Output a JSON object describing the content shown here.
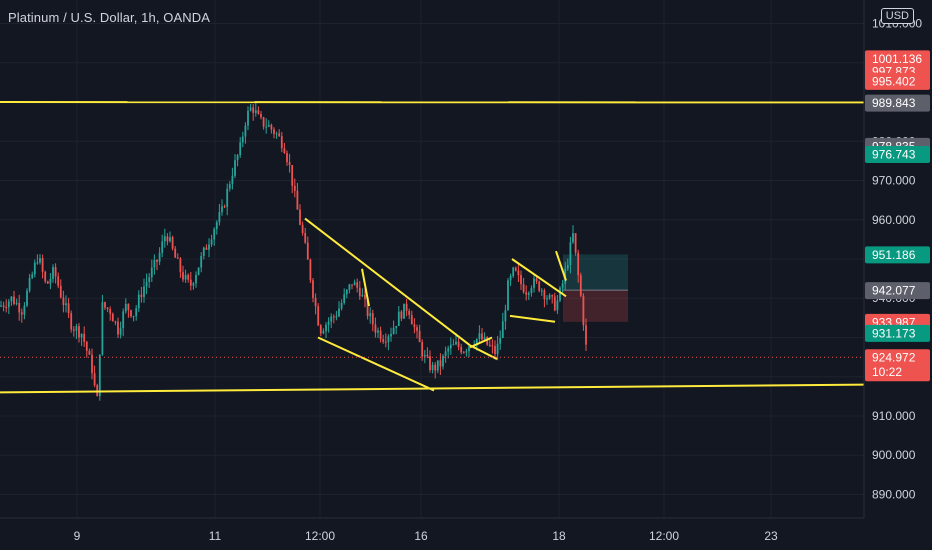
{
  "header": {
    "title": "Platinum / U.S. Dollar, 1h, OANDA",
    "currency": "USD"
  },
  "colors": {
    "background": "#131722",
    "up": "#26a69a",
    "down": "#ef5350",
    "trendline": "#ffeb3b",
    "text": "#d1d4dc",
    "gray_tag": "#5d606b",
    "grid": "#1e222d"
  },
  "chart_data": {
    "type": "candlestick",
    "instrument": "Platinum / U.S. Dollar",
    "interval": "1h",
    "source": "OANDA",
    "ylim": [
      884,
      1016
    ],
    "y_ticks": [
      890,
      900,
      910,
      920,
      930,
      940,
      950,
      960,
      970,
      980,
      990,
      1000,
      1010
    ],
    "y_tick_labels": [
      "890.000",
      "900.000",
      "910.000",
      "920.000",
      "930.000",
      "940.000",
      "950.000",
      "960.000",
      "970.000",
      "980.000",
      "990.000",
      "1000.000",
      "1010.000"
    ],
    "x_ticks": [
      {
        "label": "9",
        "pos": 77
      },
      {
        "label": "11",
        "pos": 215
      },
      {
        "label": "12:00",
        "pos": 320
      },
      {
        "label": "16",
        "pos": 421
      },
      {
        "label": "18",
        "pos": 559
      },
      {
        "label": "12:00",
        "pos": 664
      },
      {
        "label": "23",
        "pos": 771
      }
    ],
    "close_path": [
      [
        0,
        938
      ],
      [
        12,
        940
      ],
      [
        22,
        937
      ],
      [
        30,
        944
      ],
      [
        38,
        951
      ],
      [
        46,
        943
      ],
      [
        54,
        947
      ],
      [
        62,
        940
      ],
      [
        72,
        933
      ],
      [
        82,
        931
      ],
      [
        92,
        922
      ],
      [
        97,
        913
      ],
      [
        102,
        938
      ],
      [
        110,
        937
      ],
      [
        118,
        932
      ],
      [
        126,
        938
      ],
      [
        134,
        936
      ],
      [
        142,
        942
      ],
      [
        150,
        946
      ],
      [
        158,
        950
      ],
      [
        166,
        957
      ],
      [
        174,
        951
      ],
      [
        182,
        946
      ],
      [
        190,
        943
      ],
      [
        198,
        948
      ],
      [
        206,
        953
      ],
      [
        214,
        958
      ],
      [
        222,
        962
      ],
      [
        232,
        972
      ],
      [
        240,
        978
      ],
      [
        246,
        986
      ],
      [
        252,
        989
      ],
      [
        260,
        985
      ],
      [
        268,
        984
      ],
      [
        276,
        982
      ],
      [
        284,
        979
      ],
      [
        290,
        973
      ],
      [
        296,
        964
      ],
      [
        302,
        957
      ],
      [
        308,
        949
      ],
      [
        314,
        940
      ],
      [
        320,
        932
      ],
      [
        328,
        934
      ],
      [
        336,
        936
      ],
      [
        344,
        940
      ],
      [
        352,
        944
      ],
      [
        360,
        942
      ],
      [
        368,
        936
      ],
      [
        376,
        932
      ],
      [
        384,
        930
      ],
      [
        392,
        932
      ],
      [
        400,
        936
      ],
      [
        408,
        938
      ],
      [
        416,
        931
      ],
      [
        424,
        925
      ],
      [
        432,
        922
      ],
      [
        440,
        923
      ],
      [
        448,
        927
      ],
      [
        456,
        928
      ],
      [
        464,
        927
      ],
      [
        472,
        929
      ],
      [
        480,
        930
      ],
      [
        488,
        928
      ],
      [
        496,
        926
      ],
      [
        502,
        932
      ],
      [
        508,
        943
      ],
      [
        514,
        947
      ],
      [
        520,
        944
      ],
      [
        526,
        942
      ],
      [
        532,
        944
      ],
      [
        540,
        943
      ],
      [
        548,
        940
      ],
      [
        556,
        938
      ],
      [
        562,
        943
      ],
      [
        568,
        950
      ],
      [
        573,
        956
      ],
      [
        578,
        946
      ],
      [
        582,
        938
      ],
      [
        585,
        930
      ],
      [
        587,
        925
      ]
    ],
    "trendlines": [
      {
        "from": [
          0,
          990.0
        ],
        "to": [
          864,
          989.9
        ]
      },
      {
        "from": [
          0,
          916.0
        ],
        "to": [
          864,
          918.0
        ]
      },
      {
        "from": [
          305,
          960.3
        ],
        "to": [
          470,
          928.0
        ]
      },
      {
        "from": [
          318,
          930.0
        ],
        "to": [
          434,
          916.5
        ]
      },
      {
        "from": [
          362,
          947.5
        ],
        "to": [
          369,
          938.0
        ]
      },
      {
        "from": [
          470,
          928.0
        ],
        "to": [
          497,
          924.5
        ]
      },
      {
        "from": [
          470,
          927.5
        ],
        "to": [
          492,
          930.0
        ]
      },
      {
        "from": [
          512,
          950.0
        ],
        "to": [
          566,
          940.5
        ]
      },
      {
        "from": [
          510,
          935.5
        ],
        "to": [
          555,
          934.0
        ]
      },
      {
        "from": [
          556,
          952.0
        ],
        "to": [
          566,
          944.5
        ]
      }
    ],
    "position": {
      "x_start": 563,
      "x_end": 628,
      "entry": 942.077,
      "target": 951.186,
      "stop": 933.987
    },
    "current_price": 924.972,
    "countdown": "10:22",
    "price_labels": [
      {
        "value": 1001.136,
        "label": "1001.136",
        "color": "#ef5350"
      },
      {
        "value": 997.873,
        "label": "997.873",
        "color": "#ef5350"
      },
      {
        "value": 995.402,
        "label": "995.402",
        "color": "#ef5350"
      },
      {
        "value": 989.843,
        "label": "989.843",
        "color": "#5d606b"
      },
      {
        "value": 978.835,
        "label": "978.835",
        "color": "#5d606b"
      },
      {
        "value": 976.743,
        "label": "976.743",
        "color": "#089981"
      },
      {
        "value": 951.186,
        "label": "951.186",
        "color": "#089981"
      },
      {
        "value": 942.077,
        "label": "942.077",
        "color": "#5d606b"
      },
      {
        "value": 933.987,
        "label": "933.987",
        "color": "#ef5350"
      },
      {
        "value": 931.173,
        "label": "931.173",
        "color": "#089981"
      }
    ]
  }
}
